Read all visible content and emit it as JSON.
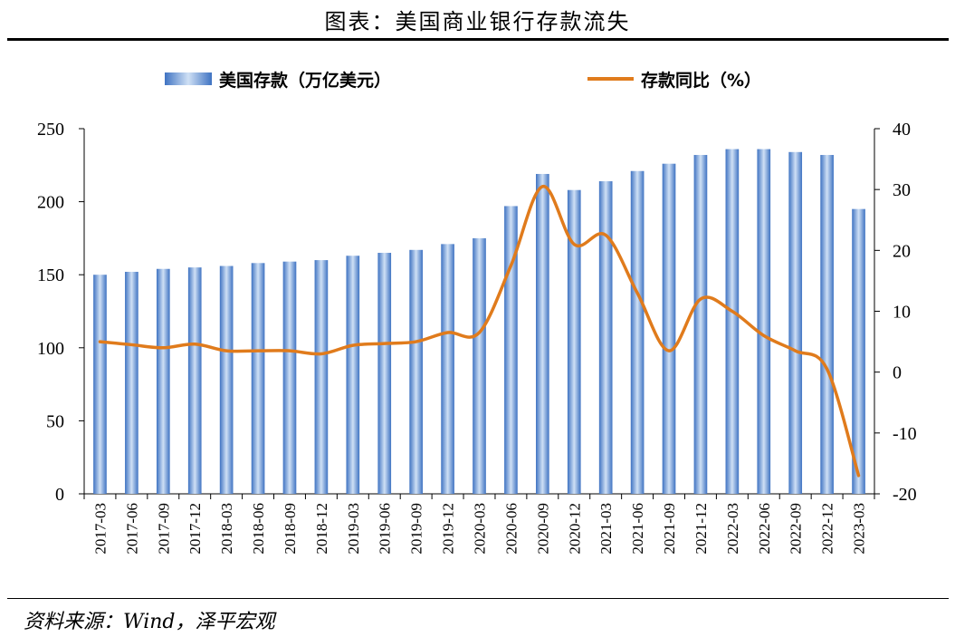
{
  "header": {
    "title": "图表：美国商业银行存款流失"
  },
  "footer": {
    "source": "资料来源：Wind，泽平宏观"
  },
  "colors": {
    "bar_dark": "#3f73c2",
    "bar_light": "#cfe0f5",
    "line": "#e07b1c"
  },
  "chart_data": {
    "type": "bar",
    "categories": [
      "2017-03",
      "2017-06",
      "2017-09",
      "2017-12",
      "2018-03",
      "2018-06",
      "2018-09",
      "2018-12",
      "2019-03",
      "2019-06",
      "2019-09",
      "2019-12",
      "2020-03",
      "2020-06",
      "2020-09",
      "2020-12",
      "2021-03",
      "2021-06",
      "2021-09",
      "2021-12",
      "2022-03",
      "2022-06",
      "2022-09",
      "2022-12",
      "2023-03"
    ],
    "series": [
      {
        "name": "美国存款（万亿美元）",
        "type": "bar",
        "axis": "left",
        "values": [
          150,
          152,
          154,
          155,
          156,
          158,
          159,
          160,
          163,
          165,
          167,
          171,
          175,
          197,
          219,
          208,
          214,
          221,
          226,
          232,
          236,
          236,
          234,
          232,
          195
        ]
      },
      {
        "name": "存款同比（%）",
        "type": "line",
        "axis": "right",
        "values": [
          5,
          4.5,
          4,
          4.6,
          3.5,
          3.5,
          3.5,
          3,
          4.4,
          4.7,
          5,
          6.5,
          6.5,
          17.5,
          30.5,
          21,
          22.5,
          13,
          3.5,
          12,
          10,
          6,
          3.5,
          0.5,
          -17
        ]
      }
    ],
    "y_left": {
      "min": 0,
      "max": 250,
      "ticks": [
        0,
        50,
        100,
        150,
        200,
        250
      ]
    },
    "y_right": {
      "min": -20,
      "max": 40,
      "ticks": [
        -20,
        -10,
        0,
        10,
        20,
        30,
        40
      ]
    },
    "legend": {
      "position": "top"
    },
    "grid": false
  }
}
